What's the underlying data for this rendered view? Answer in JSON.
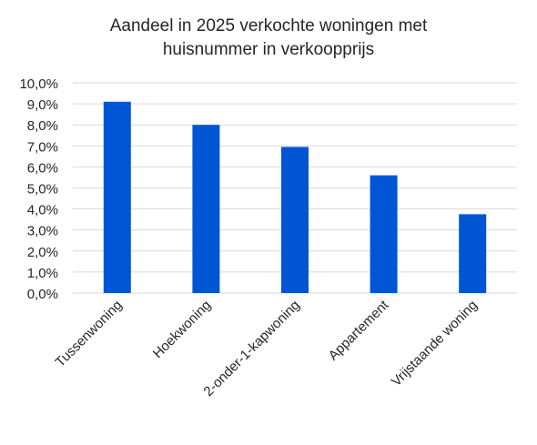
{
  "chart_data": {
    "type": "bar",
    "title_lines": [
      "Aandeel in 2025 verkochte woningen met",
      "huisnummer in verkoopprijs"
    ],
    "categories": [
      "Tussenwoning",
      "Hoekwoning",
      "2-onder-1-kapwoning",
      "Appartement",
      "Vrijstaande woning"
    ],
    "values": [
      9.1,
      8.0,
      6.95,
      5.6,
      3.75
    ],
    "ylim": [
      0,
      10
    ],
    "ytick_step": 1,
    "ytick_labels": [
      "0,0%",
      "1,0%",
      "2,0%",
      "3,0%",
      "4,0%",
      "5,0%",
      "6,0%",
      "7,0%",
      "8,0%",
      "9,0%",
      "10,0%"
    ],
    "grid": true,
    "legend": false,
    "colors": {
      "bar": "#0055d4",
      "grid": "#d9d9d9",
      "text": "#262626"
    }
  }
}
